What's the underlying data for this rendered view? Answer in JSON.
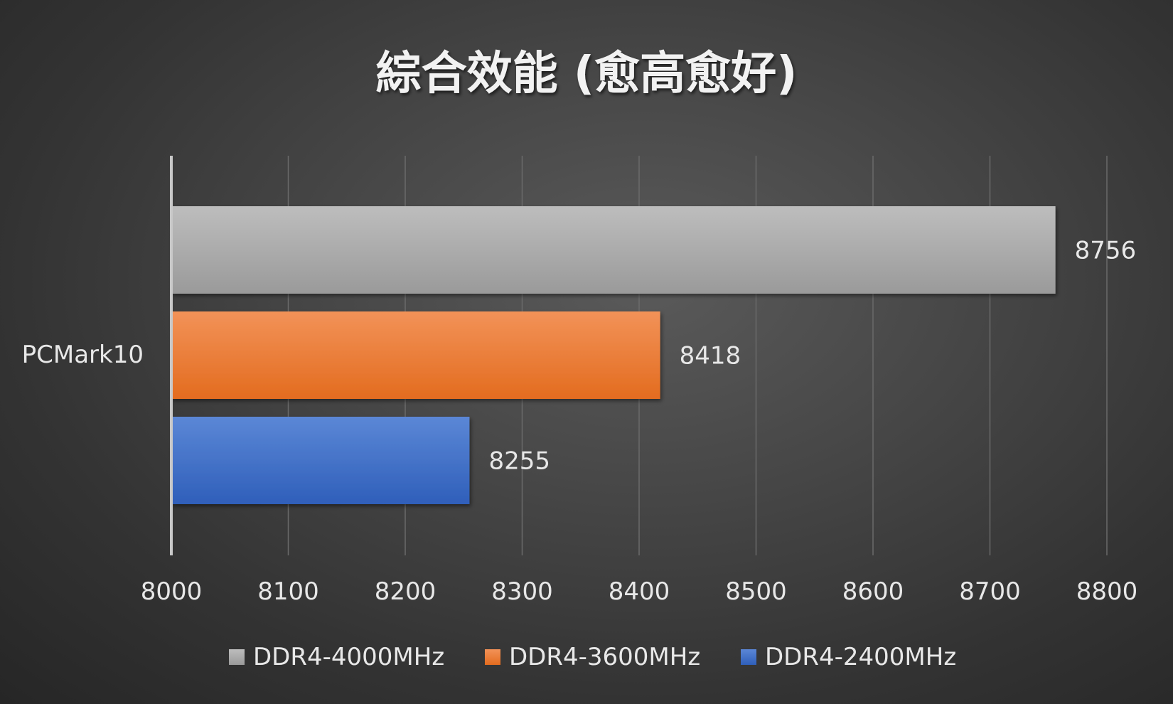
{
  "chart_data": {
    "type": "bar",
    "orientation": "horizontal",
    "title": "綜合效能 (愈高愈好)",
    "categories": [
      "PCMark10"
    ],
    "series": [
      {
        "name": "DDR4-4000MHz",
        "values": [
          8756
        ],
        "color": "#a6a6a6"
      },
      {
        "name": "DDR4-3600MHz",
        "values": [
          8418
        ],
        "color": "#ed7d31"
      },
      {
        "name": "DDR4-2400MHz",
        "values": [
          8255
        ],
        "color": "#4472c4"
      }
    ],
    "xlim": [
      8000,
      8800
    ],
    "xticks": [
      8000,
      8100,
      8200,
      8300,
      8400,
      8500,
      8600,
      8700,
      8800
    ],
    "grid": true,
    "legend": "bottom",
    "data_labels": true
  }
}
